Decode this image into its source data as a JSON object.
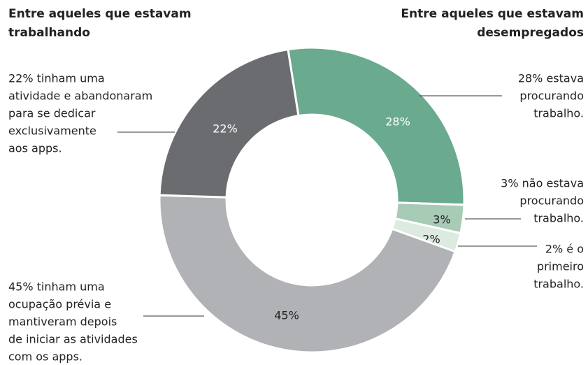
{
  "chart_data": {
    "type": "donut",
    "headers": [
      [
        "Entre aqueles que estavam",
        "trabalhando"
      ],
      [
        "Entre aqueles que estavam",
        "desempregados"
      ]
    ],
    "values": [
      28,
      3,
      2,
      45,
      22
    ],
    "value_labels": [
      "28%",
      "3%",
      "2%",
      "45%",
      "22%"
    ],
    "colors": [
      "#6aaa8e",
      "#a8cbb6",
      "#dceadf",
      "#b1b2b6",
      "#6b6c70"
    ],
    "annotations": [
      [
        "28% estava",
        "procurando",
        "trabalho."
      ],
      [
        "3% não estava",
        "procurando",
        "trabalho."
      ],
      [
        "2% é o",
        "primeiro",
        "trabalho."
      ],
      [
        "45% tinham uma",
        "ocupação prévia e",
        "mantiveram depois",
        "de iniciar as atividades",
        "com os apps."
      ],
      [
        "22% tinham uma",
        "atividade e abandonaram",
        "para se dedicar",
        "exclusivamente",
        "aos apps."
      ]
    ]
  }
}
